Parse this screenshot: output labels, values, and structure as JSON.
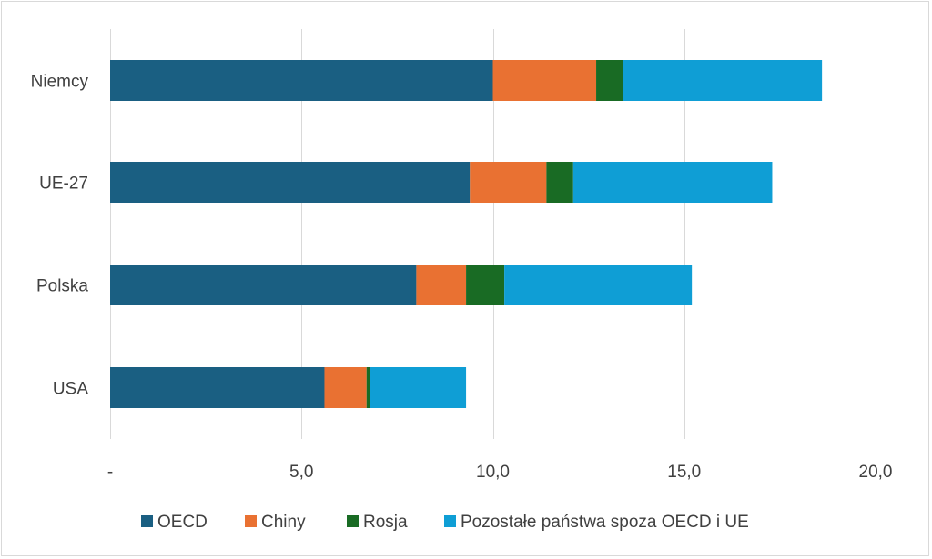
{
  "chart_data": {
    "type": "bar",
    "orientation": "horizontal",
    "stacked": true,
    "title": "",
    "xlabel": "",
    "ylabel": "",
    "xlim": [
      0,
      20
    ],
    "x_ticks": [
      0,
      5,
      10,
      15,
      20
    ],
    "x_tick_labels": [
      "-",
      "5,0",
      "10,0",
      "15,0",
      "20,0"
    ],
    "grid": true,
    "legend_position": "bottom",
    "categories": [
      "Niemcy",
      "UE-27",
      "Polska",
      "USA"
    ],
    "series": [
      {
        "name": "OECD",
        "color": "#1a5f82",
        "values": [
          10.0,
          9.4,
          8.0,
          5.6
        ]
      },
      {
        "name": "Chiny",
        "color": "#e97132",
        "values": [
          2.7,
          2.0,
          1.3,
          1.1
        ]
      },
      {
        "name": "Rosja",
        "color": "#196b24",
        "values": [
          0.7,
          0.7,
          1.0,
          0.1
        ]
      },
      {
        "name": "Pozostałe państwa spoza OECD i UE",
        "color": "#0f9ed5",
        "values": [
          5.2,
          5.2,
          4.9,
          2.5
        ]
      }
    ]
  }
}
